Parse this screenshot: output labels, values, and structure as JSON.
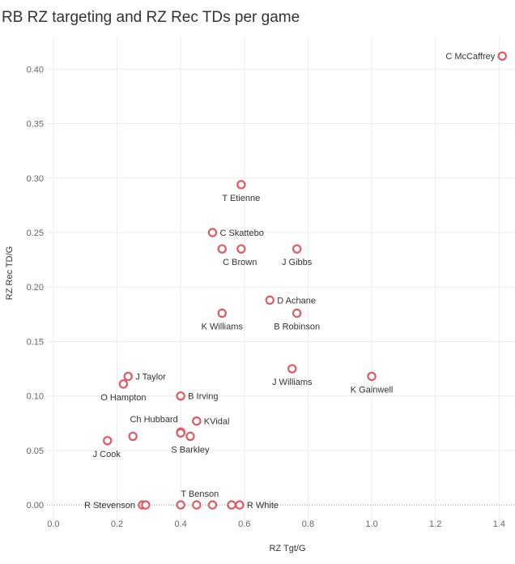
{
  "chart_data": {
    "type": "scatter",
    "title": "RB RZ targeting and  RZ Rec TDs per game",
    "xlabel": "RZ Tgt/G",
    "ylabel": "RZ Rec TD/G",
    "xlim": [
      -0.02,
      1.45
    ],
    "ylim": [
      -0.02,
      0.43
    ],
    "x_ticks": [
      "0.0",
      "0.2",
      "0.4",
      "0.6",
      "0.8",
      "1.0",
      "1.2",
      "1.4"
    ],
    "y_ticks": [
      "0.00",
      "0.05",
      "0.10",
      "0.15",
      "0.20",
      "0.25",
      "0.30",
      "0.35",
      "0.40"
    ],
    "grid": true,
    "marker_color": "#e05a63",
    "points": [
      {
        "label": "C McCaffrey",
        "x": 1.41,
        "y": 0.412,
        "label_pos": "left"
      },
      {
        "label": "T Etienne",
        "x": 0.59,
        "y": 0.294,
        "label_pos": "below"
      },
      {
        "label": "C Skattebo",
        "x": 0.5,
        "y": 0.25,
        "label_pos": "right"
      },
      {
        "label": "C Brown",
        "x": 0.53,
        "y": 0.235,
        "label_pos": "below-right"
      },
      {
        "label": "",
        "x": 0.59,
        "y": 0.235,
        "label_pos": "none"
      },
      {
        "label": "J Gibbs",
        "x": 0.765,
        "y": 0.235,
        "label_pos": "below"
      },
      {
        "label": "D Achane",
        "x": 0.68,
        "y": 0.188,
        "label_pos": "right"
      },
      {
        "label": "K Williams",
        "x": 0.53,
        "y": 0.176,
        "label_pos": "below"
      },
      {
        "label": "B Robinson",
        "x": 0.765,
        "y": 0.176,
        "label_pos": "below"
      },
      {
        "label": "J Williams",
        "x": 0.75,
        "y": 0.125,
        "label_pos": "below"
      },
      {
        "label": "K Gainwell",
        "x": 1.0,
        "y": 0.118,
        "label_pos": "below"
      },
      {
        "label": "J Taylor",
        "x": 0.235,
        "y": 0.118,
        "label_pos": "right"
      },
      {
        "label": "O Hampton",
        "x": 0.22,
        "y": 0.111,
        "label_pos": "below"
      },
      {
        "label": "B Irving",
        "x": 0.4,
        "y": 0.1,
        "label_pos": "right"
      },
      {
        "label": "KVidal",
        "x": 0.45,
        "y": 0.077,
        "label_pos": "right"
      },
      {
        "label": "Ch Hubbard",
        "x": 0.4,
        "y": 0.067,
        "label_pos": "above-left"
      },
      {
        "label": "",
        "x": 0.4,
        "y": 0.066,
        "label_pos": "none"
      },
      {
        "label": "S Barkley",
        "x": 0.43,
        "y": 0.063,
        "label_pos": "below"
      },
      {
        "label": "",
        "x": 0.25,
        "y": 0.063,
        "label_pos": "none"
      },
      {
        "label": "J Cook",
        "x": 0.17,
        "y": 0.059,
        "label_pos": "below-left"
      },
      {
        "label": "R Stevenson",
        "x": 0.28,
        "y": 0.0,
        "label_pos": "left"
      },
      {
        "label": "",
        "x": 0.29,
        "y": 0.0,
        "label_pos": "none"
      },
      {
        "label": "",
        "x": 0.4,
        "y": 0.0,
        "label_pos": "none"
      },
      {
        "label": "T Benson",
        "x": 0.45,
        "y": 0.0,
        "label_pos": "above"
      },
      {
        "label": "",
        "x": 0.5,
        "y": 0.0,
        "label_pos": "none"
      },
      {
        "label": "",
        "x": 0.56,
        "y": 0.0,
        "label_pos": "none"
      },
      {
        "label": "R White",
        "x": 0.585,
        "y": 0.0,
        "label_pos": "right"
      }
    ]
  }
}
